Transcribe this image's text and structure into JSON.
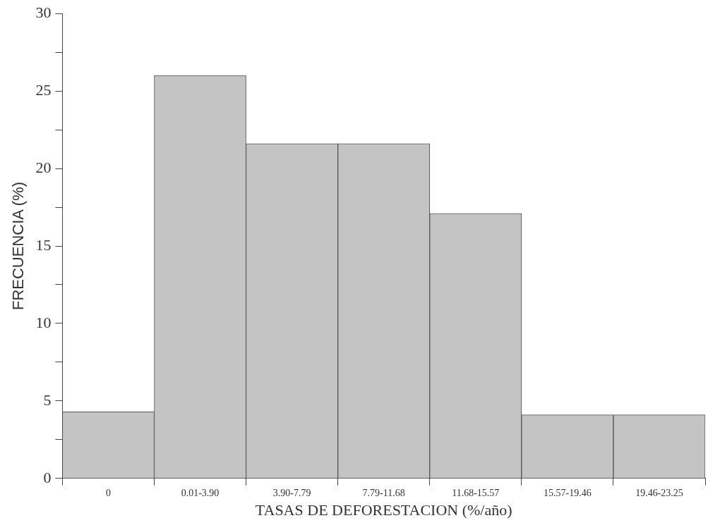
{
  "chart_data": {
    "type": "bar",
    "xlabel": "TASAS DE DEFORESTACION (%/año)",
    "ylabel": "FRECUENCIA (%)",
    "categories": [
      "0",
      "0.01-3.90",
      "3.90-7.79",
      "7.79-11.68",
      "11.68-15.57",
      "15.57-19.46",
      "19.46-23.25"
    ],
    "values": [
      4.3,
      26.0,
      21.6,
      21.6,
      17.1,
      4.1,
      4.1
    ],
    "color": "#c4c4c4",
    "ylim": [
      0,
      30
    ],
    "yticks": [
      0,
      {
        "value": 2.5,
        "label": null
      },
      5,
      {
        "value": 7.5,
        "label": null
      },
      10,
      {
        "value": 12.5,
        "label": null
      },
      15,
      {
        "value": 17.5,
        "label": null
      },
      20,
      {
        "value": 22.5,
        "label": null
      },
      25,
      {
        "value": 27.5,
        "label": null
      },
      30
    ],
    "grid": false,
    "legend": false
  }
}
